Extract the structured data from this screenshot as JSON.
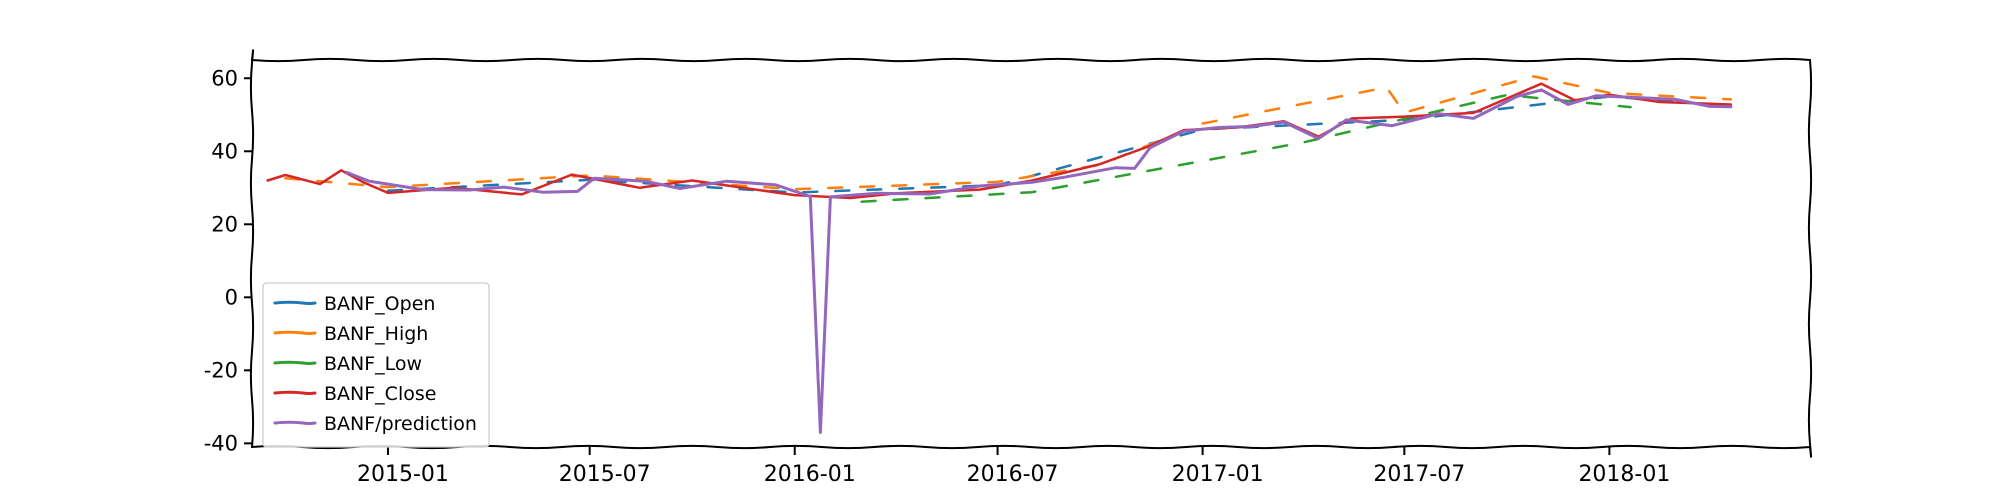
{
  "chart_data": {
    "type": "line",
    "title": "",
    "xlabel": "",
    "ylabel": "",
    "x_ticks": [
      "2015-01",
      "2015-07",
      "2016-01",
      "2016-07",
      "2017-01",
      "2017-07",
      "2018-01"
    ],
    "y_ticks": [
      "60",
      "40",
      "20",
      "0",
      "-20",
      "-40"
    ],
    "ylim": [
      -41,
      65
    ],
    "xlim": [
      "2014-09-01",
      "2018-06-30"
    ],
    "grid": false,
    "legend_position": "lower-left",
    "series": [
      {
        "name": "BANF_Open",
        "color": "#1f77b4",
        "points": [
          [
            "2015-01-01",
            29.2
          ],
          [
            "2015-07-01",
            32.2
          ],
          [
            "2016-01-01",
            28.7
          ],
          [
            "2016-07-01",
            30.7
          ],
          [
            "2017-01-01",
            46.0
          ],
          [
            "2017-07-01",
            48.6
          ],
          [
            "2018-01-01",
            55.0
          ],
          [
            "2018-04-20",
            52.4
          ]
        ]
      },
      {
        "name": "BANF_High",
        "color": "#ff7f0e",
        "points": [
          [
            "2014-10-01",
            32.6
          ],
          [
            "2015-01-01",
            30.2
          ],
          [
            "2015-07-01",
            33.4
          ],
          [
            "2016-01-01",
            29.6
          ],
          [
            "2016-07-01",
            31.6
          ],
          [
            "2016-10-01",
            36.3
          ],
          [
            "2017-01-01",
            47.6
          ],
          [
            "2017-06-15",
            57.5
          ],
          [
            "2017-07-01",
            50.6
          ],
          [
            "2017-10-25",
            60.5
          ],
          [
            "2018-01-01",
            56.0
          ],
          [
            "2018-04-20",
            54.2
          ]
        ]
      },
      {
        "name": "BANF_Low",
        "color": "#2ca02c",
        "points": [
          [
            "2016-03-01",
            26.2
          ],
          [
            "2016-08-01",
            28.8
          ],
          [
            "2017-04-01",
            42.4
          ],
          [
            "2017-10-01",
            55.4
          ],
          [
            "2018-01-20",
            52.1
          ]
        ]
      },
      {
        "name": "BANF_Close",
        "color": "#d62728",
        "points": [
          [
            "2014-09-15",
            32.0
          ],
          [
            "2014-10-01",
            33.5
          ],
          [
            "2014-11-01",
            31.0
          ],
          [
            "2014-11-20",
            34.8
          ],
          [
            "2014-12-10",
            31.5
          ],
          [
            "2015-01-01",
            28.6
          ],
          [
            "2015-03-01",
            30.0
          ],
          [
            "2015-05-01",
            28.2
          ],
          [
            "2015-06-15",
            33.6
          ],
          [
            "2015-08-15",
            30.0
          ],
          [
            "2015-10-01",
            32.0
          ],
          [
            "2016-01-01",
            28.0
          ],
          [
            "2016-02-20",
            27.2
          ],
          [
            "2016-04-01",
            28.5
          ],
          [
            "2016-06-15",
            29.5
          ],
          [
            "2016-08-01",
            32.0
          ],
          [
            "2016-10-01",
            36.5
          ],
          [
            "2016-11-15",
            41.5
          ],
          [
            "2016-12-15",
            45.8
          ],
          [
            "2017-02-01",
            46.5
          ],
          [
            "2017-03-15",
            48.2
          ],
          [
            "2017-04-15",
            44.0
          ],
          [
            "2017-05-15",
            49.0
          ],
          [
            "2017-07-01",
            49.5
          ],
          [
            "2017-09-01",
            50.5
          ],
          [
            "2017-11-01",
            58.5
          ],
          [
            "2017-12-01",
            54.0
          ],
          [
            "2018-01-01",
            55.5
          ],
          [
            "2018-02-15",
            53.5
          ],
          [
            "2018-04-20",
            52.8
          ]
        ]
      },
      {
        "name": "BANF/prediction",
        "color": "#9467bd",
        "points": [
          [
            "2014-11-25",
            34.2
          ],
          [
            "2014-12-15",
            31.8
          ],
          [
            "2015-01-01",
            31.0
          ],
          [
            "2015-02-01",
            29.5
          ],
          [
            "2015-03-15",
            29.4
          ],
          [
            "2015-04-15",
            30.2
          ],
          [
            "2015-05-20",
            28.8
          ],
          [
            "2015-06-20",
            29.0
          ],
          [
            "2015-07-05",
            32.6
          ],
          [
            "2015-08-20",
            31.8
          ],
          [
            "2015-09-20",
            29.8
          ],
          [
            "2015-11-01",
            31.8
          ],
          [
            "2015-12-15",
            30.8
          ],
          [
            "2016-01-15",
            27.6
          ],
          [
            "2016-01-24",
            -37.0
          ],
          [
            "2016-02-02",
            27.5
          ],
          [
            "2016-03-15",
            28.5
          ],
          [
            "2016-05-01",
            28.3
          ],
          [
            "2016-06-15",
            30.5
          ],
          [
            "2016-08-01",
            31.5
          ],
          [
            "2016-09-01",
            33.0
          ],
          [
            "2016-10-15",
            35.5
          ],
          [
            "2016-11-01",
            35.3
          ],
          [
            "2016-11-15",
            41.0
          ],
          [
            "2016-12-15",
            45.5
          ],
          [
            "2017-01-15",
            46.5
          ],
          [
            "2017-02-15",
            46.8
          ],
          [
            "2017-03-15",
            48.0
          ],
          [
            "2017-04-15",
            43.5
          ],
          [
            "2017-05-10",
            48.6
          ],
          [
            "2017-06-20",
            47.0
          ],
          [
            "2017-08-01",
            50.3
          ],
          [
            "2017-09-01",
            49.0
          ],
          [
            "2017-10-10",
            55.0
          ],
          [
            "2017-11-01",
            56.8
          ],
          [
            "2017-11-25",
            52.8
          ],
          [
            "2017-12-20",
            55.2
          ],
          [
            "2018-01-20",
            54.8
          ],
          [
            "2018-03-01",
            54.2
          ],
          [
            "2018-04-01",
            52.3
          ],
          [
            "2018-04-20",
            52.2
          ]
        ]
      }
    ]
  }
}
